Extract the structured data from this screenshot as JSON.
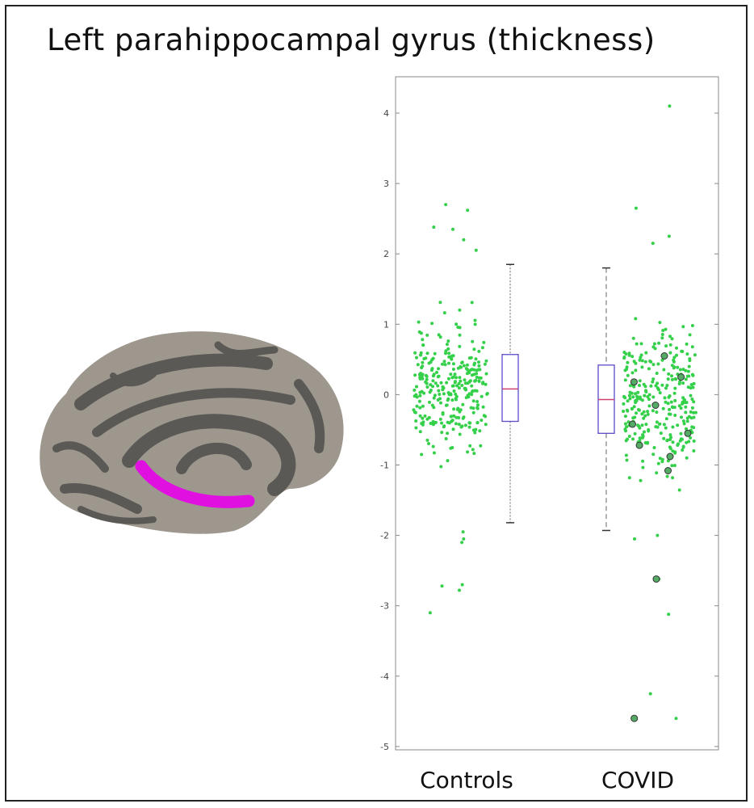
{
  "title": "Left parahippocampal gyrus (thickness)",
  "colors": {
    "brain_light": "#9d978d",
    "brain_dark": "#5a5955",
    "region_highlight": "#e010e0",
    "points": "#34d04a",
    "covid_outlined_points": "#55aa66",
    "box": "#5a4cc8",
    "median": "#d04070",
    "axis": "#888888"
  },
  "icons": {
    "brain": "inflated-brain-medial-surface"
  },
  "chart_data": {
    "type": "box-scatter",
    "categories": [
      "Controls",
      "COVID"
    ],
    "ylim": [
      -5,
      4.5
    ],
    "yticks": [
      "4",
      "3",
      "2",
      "1",
      "0",
      "-1",
      "-2",
      "-3",
      "-4",
      "-5"
    ],
    "ytick_values": [
      4,
      3,
      2,
      1,
      0,
      -1,
      -2,
      -3,
      -4,
      -5
    ],
    "grid": false,
    "legend": "none",
    "boxes": [
      {
        "name": "Controls",
        "whisker_low": -1.82,
        "q1": -0.38,
        "median": 0.08,
        "q3": 0.57,
        "whisker_high": 1.85
      },
      {
        "name": "COVID",
        "whisker_low": -1.93,
        "q1": -0.55,
        "median": -0.07,
        "q3": 0.42,
        "whisker_high": 1.8
      }
    ],
    "controls_extremes": [
      2.7,
      2.62,
      2.38,
      2.35,
      2.2,
      2.05,
      -1.95,
      -2.05,
      -2.1,
      -2.7,
      -2.72,
      -2.78,
      -3.1
    ],
    "covid_extremes": [
      4.1,
      2.65,
      2.25,
      2.15,
      -2.0,
      -2.05,
      -2.62,
      -3.12,
      -4.25,
      -4.6
    ]
  }
}
